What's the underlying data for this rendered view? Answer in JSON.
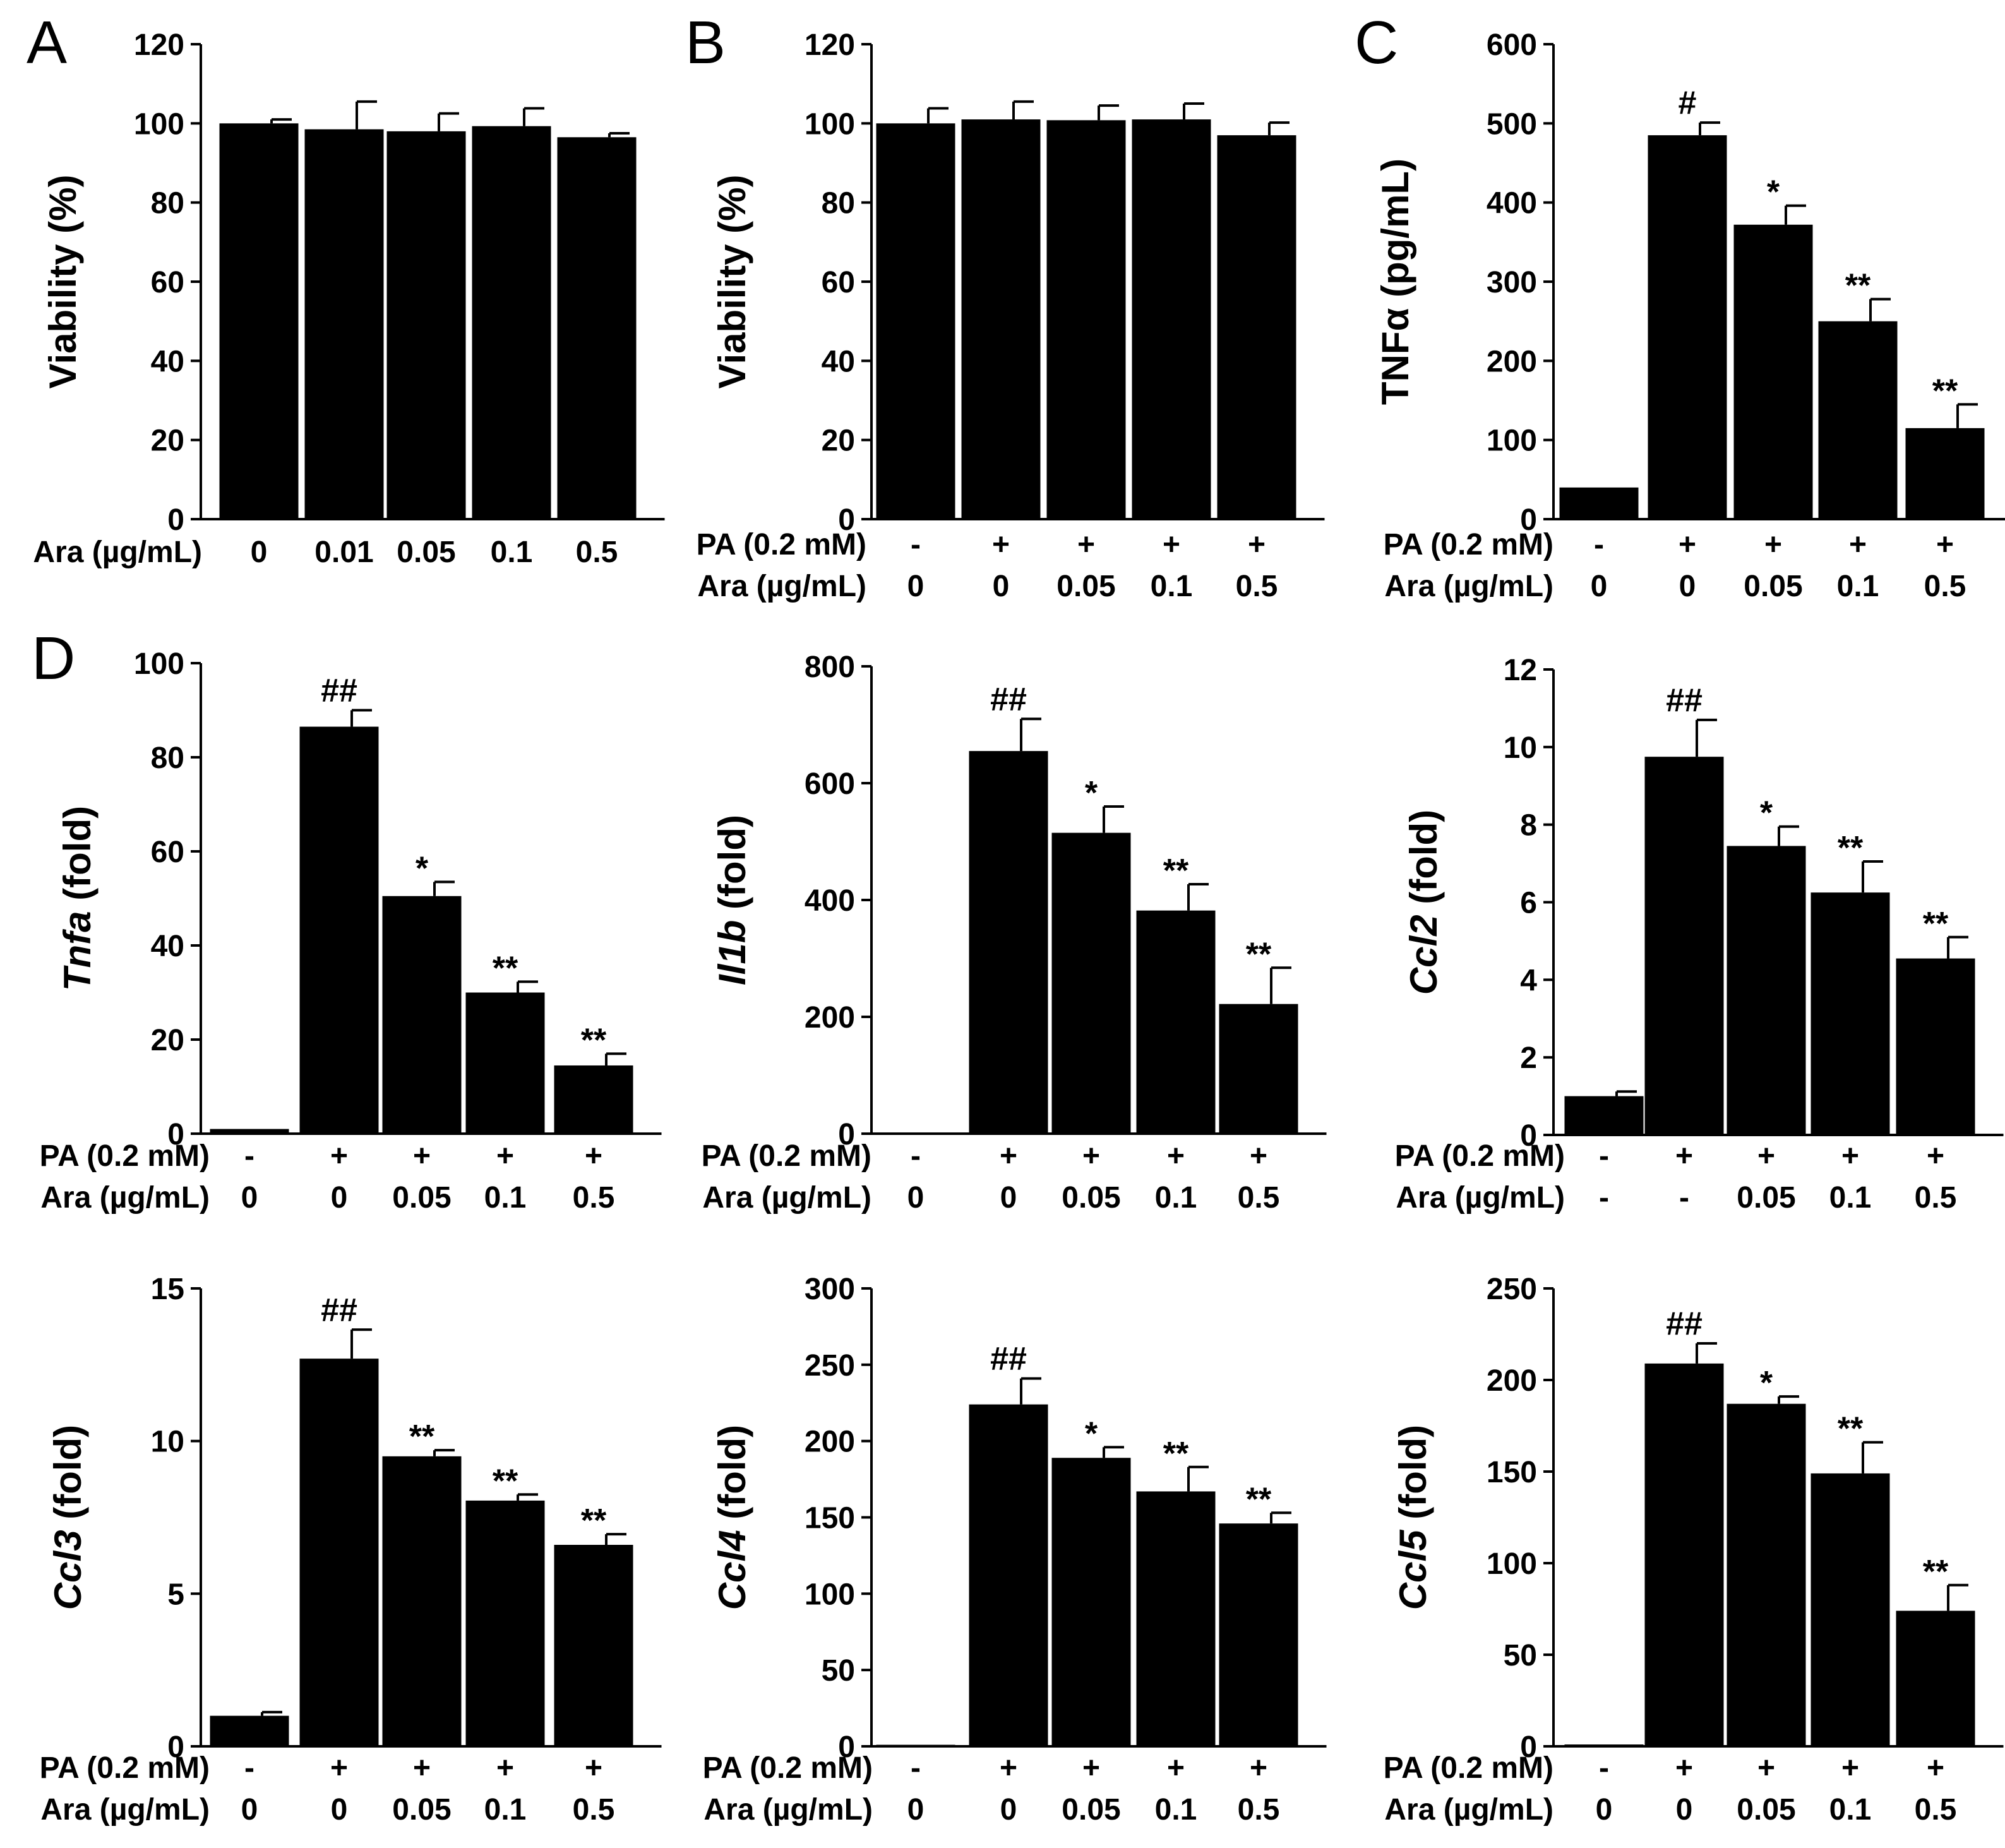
{
  "chart_data": [
    {
      "panel": "A",
      "type": "bar",
      "ylabel": "Viability (%)",
      "ylabel_italic": "",
      "ylim": [
        0,
        120
      ],
      "yticks": [
        0,
        20,
        40,
        60,
        80,
        100,
        120
      ],
      "categories": [
        "0",
        "0.01",
        "0.05",
        "0.1",
        "0.5"
      ],
      "rows": [
        {
          "label": "Ara (µg/mL)",
          "values": [
            "0",
            "0.01",
            "0.05",
            "0.1",
            "0.5"
          ]
        }
      ],
      "values": [
        100,
        98.5,
        98,
        99.3,
        96.5
      ],
      "errors": [
        1,
        7,
        4.5,
        4.5,
        1
      ],
      "annotations": [
        "",
        "",
        "",
        "",
        ""
      ]
    },
    {
      "panel": "B",
      "type": "bar",
      "ylabel": "Viability (%)",
      "ylabel_italic": "",
      "ylim": [
        0,
        120
      ],
      "yticks": [
        0,
        20,
        40,
        60,
        80,
        100,
        120
      ],
      "categories": [
        "0",
        "0",
        "0.05",
        "0.1",
        "0.5"
      ],
      "rows": [
        {
          "label": "PA (0.2 mM)",
          "values": [
            "-",
            "+",
            "+",
            "+",
            "+"
          ]
        },
        {
          "label": "Ara (µg/mL)",
          "values": [
            "0",
            "0",
            "0.05",
            "0.1",
            "0.5"
          ]
        }
      ],
      "values": [
        100,
        101,
        100.8,
        101,
        97
      ],
      "errors": [
        3.8,
        4.5,
        3.7,
        4,
        3.2
      ],
      "annotations": [
        "",
        "",
        "",
        "",
        ""
      ]
    },
    {
      "panel": "C",
      "type": "bar",
      "ylabel": "TNFα (pg/mL)",
      "ylabel_italic": "",
      "ylim": [
        0,
        600
      ],
      "yticks": [
        0,
        100,
        200,
        300,
        400,
        500,
        600
      ],
      "categories": [
        "0",
        "0",
        "0.05",
        "0.1",
        "0.5"
      ],
      "rows": [
        {
          "label": "PA (0.2 mM)",
          "values": [
            "-",
            "+",
            "+",
            "+",
            "+"
          ]
        },
        {
          "label": "Ara (µg/mL)",
          "values": [
            "0",
            "0",
            "0.05",
            "0.1",
            "0.5"
          ]
        }
      ],
      "values": [
        40,
        485,
        372,
        250,
        115
      ],
      "errors": [
        0,
        16,
        24,
        28,
        30
      ],
      "annotations": [
        "",
        "#",
        "*",
        "**",
        "**"
      ]
    },
    {
      "panel": "D",
      "type": "bar",
      "ylabel": " (fold)",
      "ylabel_italic": "Tnfa",
      "ylim": [
        0,
        100
      ],
      "yticks": [
        0,
        20,
        40,
        60,
        80,
        100
      ],
      "categories": [
        "0",
        "0",
        "0.05",
        "0.1",
        "0.5"
      ],
      "rows": [
        {
          "label": "PA (0.2 mM)",
          "values": [
            "-",
            "+",
            "+",
            "+",
            "+"
          ]
        },
        {
          "label": "Ara (µg/mL)",
          "values": [
            "0",
            "0",
            "0.05",
            "0.1",
            "0.5"
          ]
        }
      ],
      "values": [
        1,
        86.5,
        50.5,
        30,
        14.5
      ],
      "errors": [
        0,
        3.5,
        3,
        2.3,
        2.5
      ],
      "annotations": [
        "",
        "##",
        "*",
        "**",
        "**"
      ]
    },
    {
      "panel": "",
      "type": "bar",
      "ylabel": " (fold)",
      "ylabel_italic": "Il1b",
      "ylim": [
        0,
        800
      ],
      "yticks": [
        0,
        200,
        400,
        600,
        800
      ],
      "categories": [
        "0",
        "0",
        "0.05",
        "0.1",
        "0.5"
      ],
      "rows": [
        {
          "label": "PA (0.2 mM)",
          "values": [
            "-",
            "+",
            "+",
            "+",
            "+"
          ]
        },
        {
          "label": "Ara (µg/mL)",
          "values": [
            "0",
            "0",
            "0.05",
            "0.1",
            "0.5"
          ]
        }
      ],
      "values": [
        1,
        655,
        515,
        382,
        222
      ],
      "errors": [
        0,
        55,
        45,
        45,
        62
      ],
      "annotations": [
        "",
        "##",
        "*",
        "**",
        "**"
      ]
    },
    {
      "panel": "",
      "type": "bar",
      "ylabel": " (fold)",
      "ylabel_italic": "Ccl2",
      "ylim": [
        0,
        12
      ],
      "yticks": [
        0,
        2,
        4,
        6,
        8,
        10,
        12
      ],
      "categories": [
        "-",
        "-",
        "0.05",
        "0.1",
        "0.5"
      ],
      "rows": [
        {
          "label": "PA (0.2 mM)",
          "values": [
            "-",
            "+",
            "+",
            "+",
            "+"
          ]
        },
        {
          "label": "Ara (µg/mL)",
          "values": [
            "-",
            "-",
            "0.05",
            "0.1",
            "0.5"
          ]
        }
      ],
      "values": [
        1,
        9.75,
        7.45,
        6.25,
        4.55
      ],
      "errors": [
        0.12,
        0.95,
        0.5,
        0.8,
        0.55
      ],
      "annotations": [
        "",
        "##",
        "*",
        "**",
        "**"
      ]
    },
    {
      "panel": "",
      "type": "bar",
      "ylabel": " (fold)",
      "ylabel_italic": "Ccl3",
      "ylim": [
        0,
        15
      ],
      "yticks": [
        0,
        5,
        10,
        15
      ],
      "categories": [
        "0",
        "0",
        "0.05",
        "0.1",
        "0.5"
      ],
      "rows": [
        {
          "label": "PA (0.2 mM)",
          "values": [
            "-",
            "+",
            "+",
            "+",
            "+"
          ]
        },
        {
          "label": "Ara (µg/mL)",
          "values": [
            "0",
            "0",
            "0.05",
            "0.1",
            "0.5"
          ]
        }
      ],
      "values": [
        1,
        12.7,
        9.5,
        8.05,
        6.6
      ],
      "errors": [
        0.12,
        0.95,
        0.2,
        0.2,
        0.35
      ],
      "annotations": [
        "",
        "##",
        "**",
        "**",
        "**"
      ]
    },
    {
      "panel": "",
      "type": "bar",
      "ylabel": " (fold)",
      "ylabel_italic": "Ccl4",
      "ylim": [
        0,
        300
      ],
      "yticks": [
        0,
        50,
        100,
        150,
        200,
        250,
        300
      ],
      "categories": [
        "0",
        "0",
        "0.05",
        "0.1",
        "0.5"
      ],
      "rows": [
        {
          "label": "PA (0.2 mM)",
          "values": [
            "-",
            "+",
            "+",
            "+",
            "+"
          ]
        },
        {
          "label": "Ara (µg/mL)",
          "values": [
            "0",
            "0",
            "0.05",
            "0.1",
            "0.5"
          ]
        }
      ],
      "values": [
        1,
        224,
        189,
        167,
        146
      ],
      "errors": [
        0,
        17,
        7,
        16,
        7
      ],
      "annotations": [
        "",
        "##",
        "*",
        "**",
        "**"
      ]
    },
    {
      "panel": "",
      "type": "bar",
      "ylabel": " (fold)",
      "ylabel_italic": "Ccl5",
      "ylim": [
        0,
        250
      ],
      "yticks": [
        0,
        50,
        100,
        150,
        200,
        250
      ],
      "categories": [
        "0",
        "0",
        "0.05",
        "0.1",
        "0.5"
      ],
      "rows": [
        {
          "label": "PA (0.2 mM)",
          "values": [
            "-",
            "+",
            "+",
            "+",
            "+"
          ]
        },
        {
          "label": "Ara (µg/mL)",
          "values": [
            "0",
            "0",
            "0.05",
            "0.1",
            "0.5"
          ]
        }
      ],
      "values": [
        1,
        209,
        187,
        149,
        74
      ],
      "errors": [
        0,
        11,
        4,
        17,
        14
      ],
      "annotations": [
        "",
        "##",
        "*",
        "**",
        "**"
      ]
    }
  ]
}
